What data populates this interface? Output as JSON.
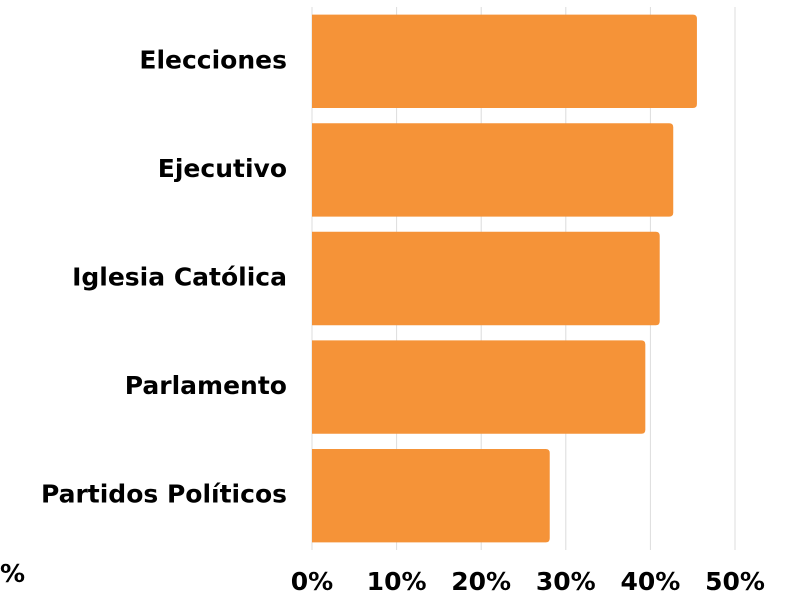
{
  "chart_data": {
    "type": "bar",
    "orientation": "horizontal",
    "categories": [
      "Elecciones",
      "Ejecutivo",
      "Iglesia Católica",
      "Parlamento",
      "Partidos Políticos"
    ],
    "values": [
      45.5,
      42.7,
      41.1,
      39.4,
      28.1
    ],
    "color": "#f59338",
    "xlabel": "%",
    "xlim": [
      0,
      50
    ],
    "xticks": [
      {
        "value": 0,
        "label": "0%"
      },
      {
        "value": 10,
        "label": "10%"
      },
      {
        "value": 20,
        "label": "20%"
      },
      {
        "value": 30,
        "label": "30%"
      },
      {
        "value": 40,
        "label": "40%"
      },
      {
        "value": 50,
        "label": "50%"
      }
    ],
    "grid": true
  }
}
